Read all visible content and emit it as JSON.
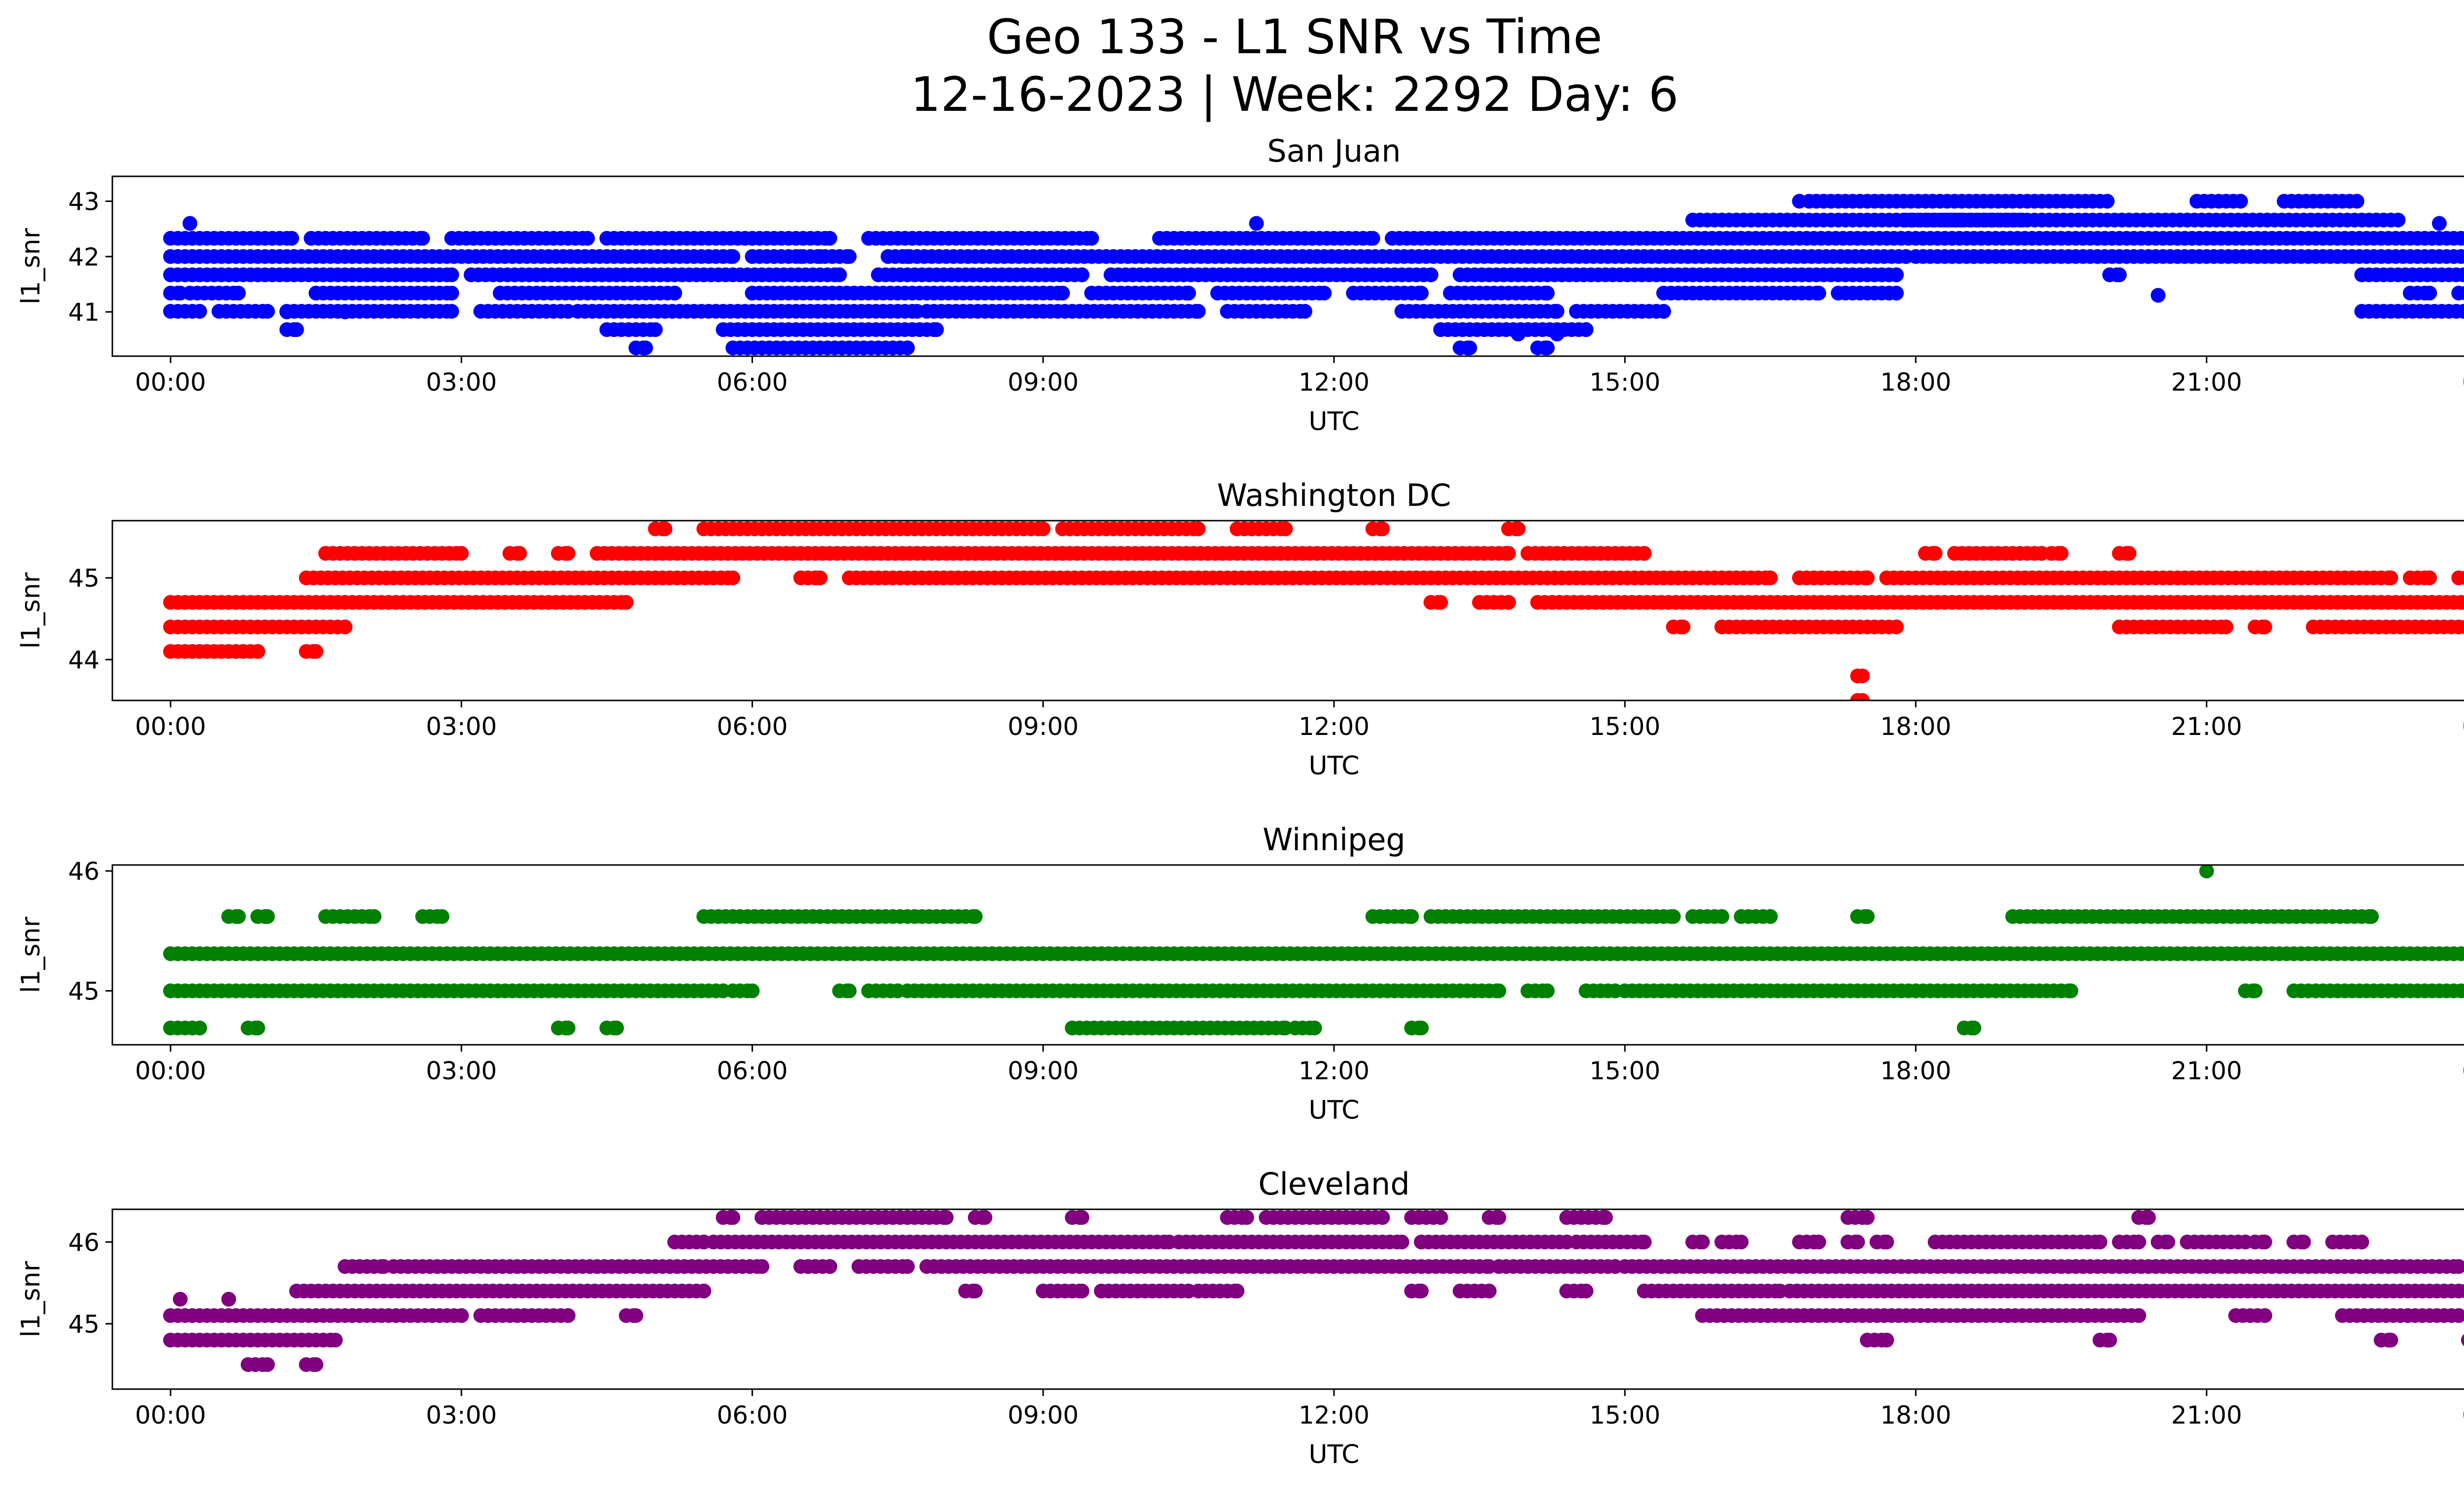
{
  "figure": {
    "title_line1": "Geo 133 - L1 SNR vs Time",
    "title_line2": "12-16-2023 | Week: 2292 Day: 6"
  },
  "chart_data": [
    {
      "type": "scatter",
      "title": "San Juan",
      "xlabel": "UTC",
      "ylabel": "l1_snr",
      "color": "#0000ff",
      "xlim": [
        -0.6,
        24.6
      ],
      "ylim": [
        40.2,
        43.45
      ],
      "x_ticks": [
        "00:00",
        "03:00",
        "06:00",
        "09:00",
        "12:00",
        "15:00",
        "18:00",
        "21:00",
        "00:00"
      ],
      "y_ticks": [
        41,
        42,
        43
      ],
      "y_step": 0.33,
      "bands": [
        [
          [
            0,
            1.25
          ],
          [
            1.45,
            2.6
          ],
          [
            2.9,
            4.3
          ],
          [
            4.5,
            6.8
          ],
          [
            7.2,
            9.5
          ],
          [
            10.2,
            12.4
          ],
          [
            12.6,
            24
          ]
        ],
        [
          [
            0,
            5.8
          ],
          [
            6.0,
            7.0
          ],
          [
            7.4,
            17.9
          ],
          [
            18.0,
            24
          ]
        ],
        [
          [
            0,
            2.9
          ],
          [
            3.1,
            6.9
          ],
          [
            7.3,
            9.4
          ],
          [
            9.7,
            13.0
          ],
          [
            13.3,
            17.8
          ],
          [
            20.0,
            20.1
          ],
          [
            22.6,
            24
          ]
        ],
        [
          [
            0,
            0.1
          ],
          [
            0.2,
            0.7
          ],
          [
            1.5,
            2.9
          ],
          [
            3.4,
            5.2
          ],
          [
            6.0,
            9.2
          ],
          [
            9.5,
            10.5
          ],
          [
            10.8,
            11.9
          ],
          [
            12.2,
            12.9
          ],
          [
            13.2,
            14.2
          ],
          [
            15.4,
            17.0
          ],
          [
            17.2,
            17.8
          ],
          [
            23.1,
            23.3
          ],
          [
            23.6,
            23.9
          ]
        ],
        [
          [
            0,
            0.3
          ],
          [
            0.5,
            1.0
          ],
          [
            1.2,
            2.9
          ],
          [
            3.2,
            4.1
          ],
          [
            4.2,
            7.7
          ],
          [
            7.8,
            10.6
          ],
          [
            10.9,
            11.7
          ],
          [
            12.7,
            14.3
          ],
          [
            14.5,
            15.4
          ],
          [
            22.6,
            24
          ]
        ],
        [
          [
            1.2,
            1.3
          ],
          [
            4.5,
            5.0
          ],
          [
            5.7,
            7.9
          ],
          [
            13.1,
            14.6
          ]
        ],
        [
          [
            4.8,
            4.9
          ],
          [
            5.8,
            7.6
          ],
          [
            13.3,
            13.4
          ],
          [
            14.1,
            14.2
          ]
        ],
        [
          [
            6.3,
            6.6
          ],
          [
            6.8,
            6.95
          ]
        ]
      ],
      "upper_bands": [
        [
          17.8,
          18.0
        ],
        [
          18.3,
          18.5
        ],
        [
          18.7,
          19.1
        ],
        [
          19.3,
          19.5
        ]
      ],
      "upper_start": 42.33,
      "band_starts_note": "",
      "band_top": 42.33,
      "points": [
        [
          0.2,
          42.6
        ],
        [
          1.2,
          41.0
        ],
        [
          1.8,
          41.0
        ],
        [
          6.5,
          42.0
        ],
        [
          6.7,
          42.0
        ],
        [
          7.6,
          42.0
        ],
        [
          11.2,
          42.6
        ],
        [
          13.9,
          40.6
        ],
        [
          14.3,
          40.6
        ],
        [
          16.8,
          43.0
        ],
        [
          18.6,
          42.0
        ],
        [
          20.5,
          41.3
        ],
        [
          23.4,
          42.6
        ],
        [
          24,
          41.3
        ]
      ]
    },
    {
      "type": "scatter",
      "title": "Washington DC",
      "xlabel": "UTC",
      "ylabel": "l1_snr",
      "color": "#ff0000",
      "xlim": [
        -0.6,
        24.6
      ],
      "ylim": [
        43.5,
        45.7
      ],
      "x_ticks": [
        "00:00",
        "03:00",
        "06:00",
        "09:00",
        "12:00",
        "15:00",
        "18:00",
        "21:00",
        "00:00"
      ],
      "y_ticks": [
        44,
        45
      ],
      "y_step": 0.3,
      "band_top": 45.6,
      "bands": [
        [
          [
            5.0,
            5.1
          ],
          [
            5.5,
            9.0
          ],
          [
            9.2,
            10.6
          ],
          [
            11.0,
            11.5
          ],
          [
            12.4,
            12.5
          ],
          [
            13.8,
            13.9
          ]
        ],
        [
          [
            1.6,
            3.0
          ],
          [
            3.5,
            3.6
          ],
          [
            4.0,
            4.1
          ],
          [
            4.4,
            13.8
          ],
          [
            14.0,
            15.2
          ],
          [
            18.1,
            18.2
          ],
          [
            18.4,
            19.3
          ],
          [
            19.4,
            19.5
          ],
          [
            20.1,
            20.2
          ]
        ],
        [
          [
            1.4,
            5.8
          ],
          [
            6.5,
            6.7
          ],
          [
            7.0,
            16.5
          ],
          [
            16.8,
            17.5
          ],
          [
            17.7,
            22.9
          ],
          [
            23.1,
            23.3
          ],
          [
            23.6,
            23.7
          ]
        ],
        [
          [
            0,
            4.7
          ],
          [
            13.0,
            13.1
          ],
          [
            13.5,
            13.8
          ],
          [
            14.1,
            24
          ]
        ],
        [
          [
            0,
            1.8
          ],
          [
            15.5,
            15.6
          ],
          [
            16.0,
            17.8
          ],
          [
            20.1,
            21.2
          ],
          [
            21.5,
            21.6
          ],
          [
            22.1,
            24
          ]
        ],
        [
          [
            0,
            0.9
          ],
          [
            1.4,
            1.5
          ]
        ],
        [
          [
            17.4,
            17.45
          ]
        ],
        [
          [
            17.4,
            17.45
          ]
        ]
      ],
      "points": []
    },
    {
      "type": "scatter",
      "title": "Winnipeg",
      "xlabel": "UTC",
      "ylabel": "l1_snr",
      "color": "#008000",
      "xlim": [
        -0.6,
        24.6
      ],
      "ylim": [
        44.55,
        46.05
      ],
      "x_ticks": [
        "00:00",
        "03:00",
        "06:00",
        "09:00",
        "12:00",
        "15:00",
        "18:00",
        "21:00",
        "00:00"
      ],
      "y_ticks": [
        45,
        46
      ],
      "y_step": 0.31,
      "band_top": 45.62,
      "bands": [
        [
          [
            0.6,
            0.7
          ],
          [
            0.9,
            1.0
          ],
          [
            1.6,
            2.1
          ],
          [
            2.6,
            2.8
          ],
          [
            5.5,
            8.3
          ],
          [
            12.4,
            12.8
          ],
          [
            13.0,
            15.5
          ],
          [
            15.7,
            16.0
          ],
          [
            16.2,
            16.5
          ],
          [
            17.4,
            17.5
          ],
          [
            19.0,
            22.7
          ]
        ],
        [
          [
            0,
            24
          ]
        ],
        [
          [
            0,
            5.7
          ],
          [
            5.8,
            6.0
          ],
          [
            6.9,
            7.0
          ],
          [
            7.2,
            7.5
          ],
          [
            7.6,
            13.7
          ],
          [
            14.0,
            14.2
          ],
          [
            14.6,
            14.9
          ],
          [
            15.0,
            19.6
          ],
          [
            21.4,
            21.5
          ],
          [
            21.9,
            24
          ]
        ],
        [
          [
            0,
            0.3
          ],
          [
            0.8,
            0.9
          ],
          [
            4.0,
            4.1
          ],
          [
            4.5,
            4.6
          ],
          [
            9.3,
            11.5
          ],
          [
            11.6,
            11.8
          ],
          [
            12.8,
            12.9
          ],
          [
            18.5,
            18.6
          ],
          [
            24,
            24
          ]
        ]
      ],
      "points": [
        [
          21.0,
          46.0
        ]
      ]
    },
    {
      "type": "scatter",
      "title": "Cleveland",
      "xlabel": "UTC",
      "ylabel": "l1_snr",
      "color": "#800080",
      "xlim": [
        -0.6,
        24.6
      ],
      "ylim": [
        44.2,
        46.4
      ],
      "x_ticks": [
        "00:00",
        "03:00",
        "06:00",
        "09:00",
        "12:00",
        "15:00",
        "18:00",
        "21:00",
        "00:00"
      ],
      "y_ticks": [
        45,
        46
      ],
      "y_step": 0.3,
      "band_top": 46.3,
      "bands": [
        [
          [
            5.7,
            5.8
          ],
          [
            6.1,
            8.0
          ],
          [
            8.3,
            8.4
          ],
          [
            9.3,
            9.4
          ],
          [
            10.9,
            11.1
          ],
          [
            11.3,
            12.5
          ],
          [
            12.8,
            13.1
          ],
          [
            13.6,
            13.7
          ],
          [
            14.4,
            14.8
          ],
          [
            17.3,
            17.5
          ],
          [
            20.3,
            20.4
          ]
        ],
        [
          [
            5.2,
            5.5
          ],
          [
            5.6,
            10.3
          ],
          [
            10.4,
            12.7
          ],
          [
            12.9,
            14.4
          ],
          [
            14.5,
            15.2
          ],
          [
            15.7,
            15.8
          ],
          [
            16.0,
            16.2
          ],
          [
            16.8,
            17.0
          ],
          [
            17.3,
            17.4
          ],
          [
            17.6,
            17.7
          ],
          [
            18.2,
            19.9
          ],
          [
            20.1,
            20.3
          ],
          [
            20.5,
            20.6
          ],
          [
            20.8,
            21.4
          ],
          [
            21.5,
            21.6
          ],
          [
            21.9,
            22.0
          ],
          [
            22.3,
            22.6
          ]
        ],
        [
          [
            1.8,
            2.2
          ],
          [
            2.3,
            6.1
          ],
          [
            6.5,
            6.8
          ],
          [
            7.1,
            7.6
          ],
          [
            7.8,
            13.6
          ],
          [
            13.7,
            14.9
          ],
          [
            15.0,
            23.6
          ]
        ],
        [
          [
            1.3,
            5.5
          ],
          [
            8.2,
            8.3
          ],
          [
            9.0,
            9.4
          ],
          [
            9.6,
            10.5
          ],
          [
            10.6,
            11.0
          ],
          [
            12.8,
            12.9
          ],
          [
            13.3,
            13.6
          ],
          [
            14.4,
            14.6
          ],
          [
            15.2,
            16.6
          ],
          [
            16.7,
            24
          ]
        ],
        [
          [
            0,
            3.0
          ],
          [
            3.2,
            4.1
          ],
          [
            4.7,
            4.8
          ],
          [
            15.8,
            20.3
          ],
          [
            21.3,
            21.6
          ],
          [
            22.4,
            23.6
          ],
          [
            23.8,
            24
          ]
        ],
        [
          [
            0,
            1.7
          ],
          [
            17.5,
            17.7
          ],
          [
            19.9,
            20.0
          ],
          [
            22.8,
            22.9
          ],
          [
            23.7,
            24
          ]
        ],
        [
          [
            0.8,
            1.0
          ],
          [
            1.4,
            1.5
          ]
        ]
      ],
      "extra_points": [
        [
          0.1,
          45.3
        ],
        [
          0.2,
          45.3
        ],
        [
          0.5,
          45.3
        ],
        [
          0.6,
          45.3
        ]
      ],
      "points": [
        [
          0.1,
          45.3
        ],
        [
          0.6,
          45.3
        ]
      ]
    }
  ]
}
